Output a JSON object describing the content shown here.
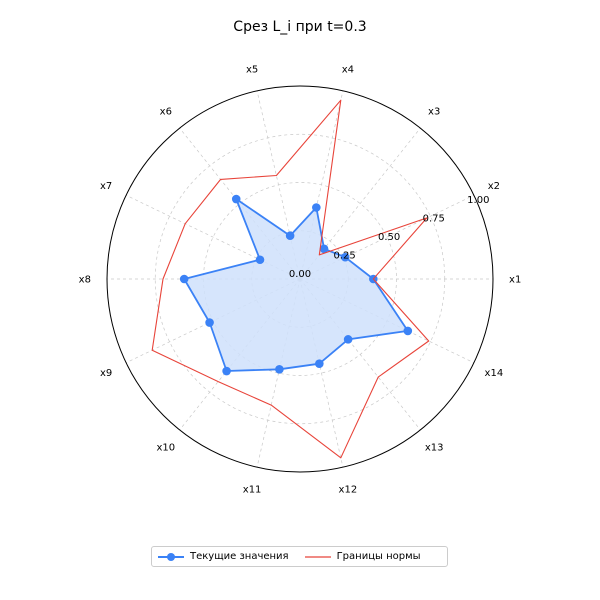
{
  "chart_data": {
    "type": "radar",
    "title": "Срез L_i при t=0.3",
    "categories": [
      "x1",
      "x2",
      "x3",
      "x4",
      "x5",
      "x6",
      "x7",
      "x8",
      "x9",
      "x10",
      "x11",
      "x12",
      "x13",
      "x14"
    ],
    "radial_ticks": [
      "0.00",
      "0.25",
      "0.50",
      "0.75",
      "1.00"
    ],
    "rlim": [
      0,
      1.0
    ],
    "grid": true,
    "legend_position": "bottom-center",
    "series": [
      {
        "name": "Текущие значения",
        "values": [
          0.38,
          0.26,
          0.2,
          0.38,
          0.23,
          0.53,
          0.23,
          0.6,
          0.52,
          0.61,
          0.48,
          0.45,
          0.4,
          0.62
        ],
        "color": "#3b82f6",
        "fill": "#cfe0fb",
        "marker": "circle"
      },
      {
        "name": "Границы нормы",
        "values": [
          0.38,
          0.73,
          0.16,
          0.95,
          0.55,
          0.66,
          0.66,
          0.71,
          0.85,
          0.68,
          0.67,
          0.95,
          0.65,
          0.74
        ],
        "color": "#e8443a"
      }
    ]
  }
}
